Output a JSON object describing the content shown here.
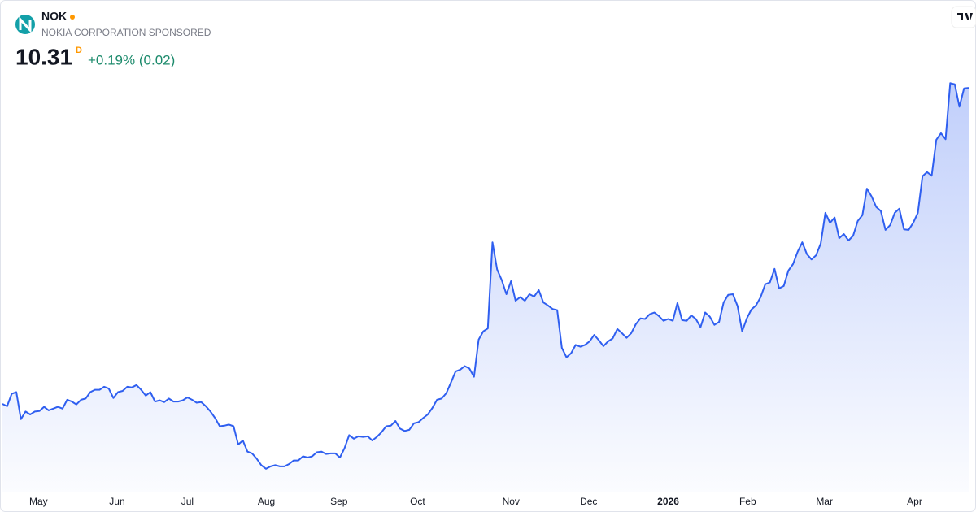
{
  "chart_data": {
    "type": "area",
    "title": "NOK",
    "subtitle": "NOKIA CORPORATION SPONSORED",
    "price": 10.31,
    "interval": "D",
    "change": "+0.19% (0.02)",
    "color": "#2f5ff0",
    "values": [
      4.95,
      4.91,
      5.12,
      5.15,
      4.69,
      4.82,
      4.77,
      4.82,
      4.83,
      4.9,
      4.84,
      4.87,
      4.9,
      4.87,
      5.02,
      4.99,
      4.94,
      5.02,
      5.04,
      5.15,
      5.19,
      5.19,
      5.24,
      5.21,
      5.05,
      5.15,
      5.17,
      5.24,
      5.23,
      5.27,
      5.19,
      5.09,
      5.15,
      4.99,
      5.01,
      4.98,
      5.04,
      4.99,
      4.99,
      5.01,
      5.06,
      5.02,
      4.97,
      4.98,
      4.91,
      4.82,
      4.71,
      4.57,
      4.58,
      4.6,
      4.57,
      4.26,
      4.33,
      4.14,
      4.11,
      4.02,
      3.91,
      3.85,
      3.89,
      3.91,
      3.89,
      3.89,
      3.93,
      3.99,
      3.99,
      4.06,
      4.04,
      4.06,
      4.13,
      4.14,
      4.1,
      4.11,
      4.11,
      4.04,
      4.2,
      4.42,
      4.36,
      4.4,
      4.39,
      4.4,
      4.33,
      4.39,
      4.47,
      4.57,
      4.58,
      4.66,
      4.53,
      4.49,
      4.51,
      4.62,
      4.64,
      4.71,
      4.77,
      4.88,
      5.02,
      5.04,
      5.13,
      5.31,
      5.5,
      5.53,
      5.59,
      5.55,
      5.41,
      6.04,
      6.18,
      6.23,
      7.69,
      7.23,
      7.05,
      6.81,
      7.03,
      6.7,
      6.76,
      6.7,
      6.81,
      6.77,
      6.88,
      6.67,
      6.62,
      6.56,
      6.54,
      5.9,
      5.74,
      5.81,
      5.95,
      5.92,
      5.95,
      6.01,
      6.12,
      6.03,
      5.93,
      6.01,
      6.06,
      6.22,
      6.15,
      6.07,
      6.15,
      6.3,
      6.4,
      6.39,
      6.47,
      6.5,
      6.44,
      6.36,
      6.39,
      6.36,
      6.66,
      6.37,
      6.36,
      6.45,
      6.39,
      6.25,
      6.5,
      6.43,
      6.29,
      6.34,
      6.67,
      6.8,
      6.81,
      6.61,
      6.18,
      6.4,
      6.55,
      6.62,
      6.76,
      6.98,
      7.01,
      7.24,
      6.91,
      6.95,
      7.21,
      7.32,
      7.53,
      7.69,
      7.49,
      7.4,
      7.47,
      7.67,
      8.19,
      8.02,
      8.11,
      7.76,
      7.83,
      7.72,
      7.8,
      8.05,
      8.15,
      8.6,
      8.47,
      8.29,
      8.22,
      7.9,
      7.98,
      8.19,
      8.26,
      7.91,
      7.9,
      8.02,
      8.19,
      8.81,
      8.88,
      8.82,
      9.43,
      9.54,
      9.44,
      10.39,
      10.37,
      9.99,
      10.3,
      10.31
    ],
    "xlim": [
      0,
      209
    ],
    "xticks": [
      {
        "value": 7.8,
        "label": "May"
      },
      {
        "value": 24.8,
        "label": "Jun"
      },
      {
        "value": 40,
        "label": "Jul"
      },
      {
        "value": 57.1,
        "label": "Aug"
      },
      {
        "value": 72.8,
        "label": "Sep"
      },
      {
        "value": 89.8,
        "label": "Oct"
      },
      {
        "value": 110,
        "label": "Nov"
      },
      {
        "value": 126.8,
        "label": "Dec"
      },
      {
        "value": 144,
        "label": "2026"
      },
      {
        "value": 161.2,
        "label": "Feb"
      },
      {
        "value": 177.8,
        "label": "Mar"
      },
      {
        "value": 197.3,
        "label": "Apr"
      }
    ],
    "ylim": [
      3.53,
      10.49
    ]
  }
}
